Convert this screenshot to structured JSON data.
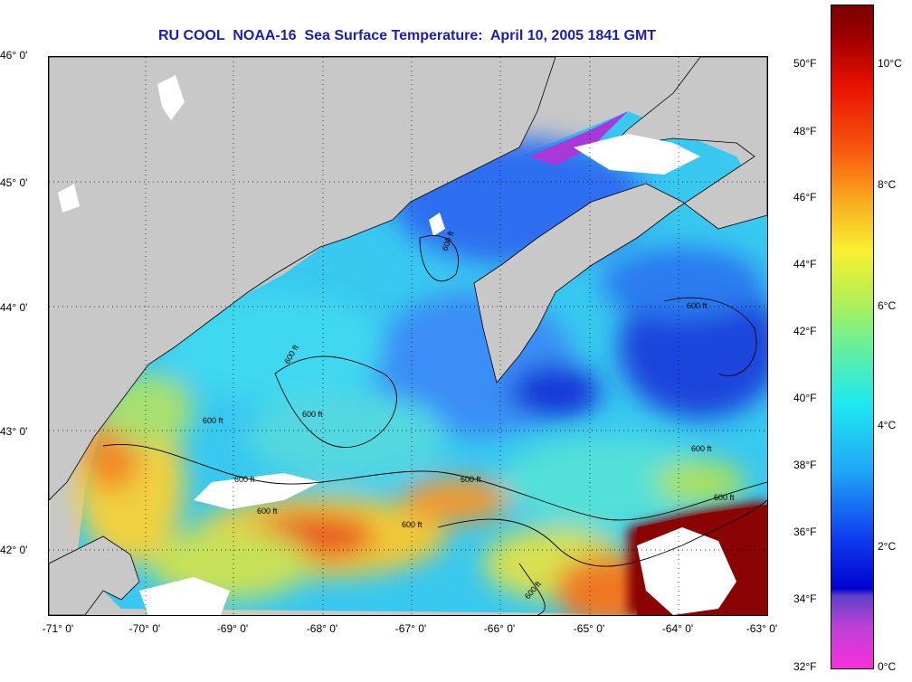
{
  "title": "RU COOL  NOAA-16  Sea Surface Temperature:  April 10, 2005 1841 GMT",
  "lat_labels": [
    "46° 0'",
    "45° 0'",
    "44° 0'",
    "43° 0'",
    "42° 0'"
  ],
  "lon_labels": [
    "-71° 0'",
    "-70° 0'",
    "-69° 0'",
    "-68° 0'",
    "-67° 0'",
    "-66° 0'",
    "-65° 0'",
    "-64° 0'",
    "-63° 0'"
  ],
  "contour_label": "600 ft",
  "colorbar": {
    "fahrenheit": [
      "50°F",
      "48°F",
      "46°F",
      "44°F",
      "42°F",
      "40°F",
      "38°F",
      "36°F",
      "34°F",
      "32°F"
    ],
    "celsius": [
      "10°C",
      "8°C",
      "6°C",
      "4°C",
      "2°C",
      "0°C"
    ]
  },
  "colors": {
    "land": "#c8c8c8",
    "cloud": "#ffffff",
    "title": "#1c1cb8"
  }
}
